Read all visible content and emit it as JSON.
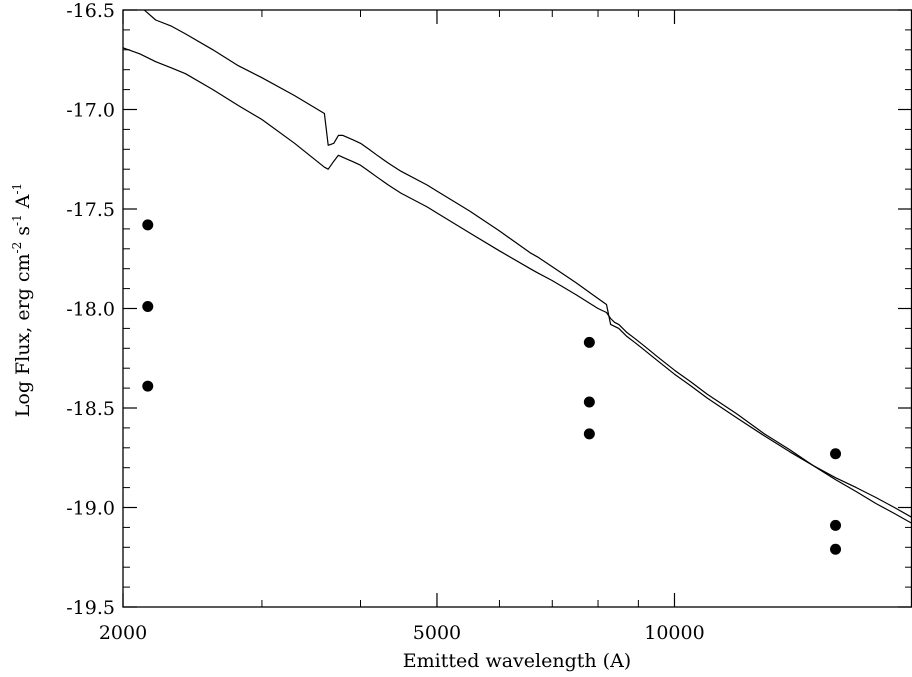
{
  "chart_data": {
    "type": "line",
    "title": "",
    "xlabel": "Emitted wavelength (A)",
    "ylabel": {
      "parts": [
        {
          "text": "Log Flux, erg cm",
          "sup": false
        },
        {
          "text": "-2",
          "sup": true
        },
        {
          "text": " s",
          "sup": false
        },
        {
          "text": "-1",
          "sup": true
        },
        {
          "text": " A",
          "sup": false
        },
        {
          "text": "-1",
          "sup": true
        }
      ]
    },
    "x_scale": "log",
    "xlim": [
      2000,
      20000
    ],
    "ylim": [
      -19.5,
      -16.5
    ],
    "x_ticks": [
      2000,
      5000,
      10000
    ],
    "x_tick_labels": [
      "2000",
      "5000",
      "10000"
    ],
    "y_ticks": [
      -16.5,
      -17.0,
      -17.5,
      -18.0,
      -18.5,
      -19.0,
      -19.5
    ],
    "y_tick_labels": [
      "-16.5",
      "-17.0",
      "-17.5",
      "-18.0",
      "-18.5",
      "-19.0",
      "-19.5"
    ],
    "grid": false,
    "colors": {
      "line": "#000000",
      "points": "#000000",
      "background": "#ffffff"
    },
    "series": [
      {
        "type": "line",
        "x": [
          2000,
          2100,
          2200,
          2300,
          2400,
          2600,
          2800,
          3000,
          3300,
          3600,
          3640,
          3700,
          3750,
          3800,
          3850,
          3900,
          3950,
          4000,
          4100,
          4200,
          4340,
          4500,
          4861,
          5000,
          5500,
          6000,
          6563,
          6700,
          7000,
          7500,
          8000,
          8200,
          8300,
          8400,
          8500,
          8700,
          8900,
          9100,
          9300,
          9500,
          10000,
          10500,
          11000,
          12000,
          13000,
          14000,
          15000,
          16000,
          17000,
          18000,
          19000,
          20000
        ],
        "y": [
          -16.43,
          -16.48,
          -16.55,
          -16.58,
          -16.62,
          -16.7,
          -16.78,
          -16.84,
          -16.93,
          -17.02,
          -17.18,
          -17.17,
          -17.13,
          -17.13,
          -17.14,
          -17.15,
          -17.16,
          -17.17,
          -17.2,
          -17.23,
          -17.27,
          -17.31,
          -17.38,
          -17.41,
          -17.51,
          -17.61,
          -17.72,
          -17.74,
          -17.79,
          -17.87,
          -17.95,
          -17.98,
          -18.08,
          -18.09,
          -18.1,
          -18.14,
          -18.17,
          -18.2,
          -18.23,
          -18.26,
          -18.33,
          -18.39,
          -18.45,
          -18.55,
          -18.64,
          -18.72,
          -18.79,
          -18.85,
          -18.9,
          -18.95,
          -19.0,
          -19.05
        ]
      },
      {
        "type": "line",
        "x": [
          2000,
          2100,
          2200,
          2300,
          2400,
          2600,
          2800,
          3000,
          3300,
          3600,
          3640,
          3700,
          3750,
          3800,
          3850,
          3900,
          3950,
          4000,
          4100,
          4200,
          4340,
          4500,
          4861,
          5000,
          5500,
          6000,
          6563,
          6700,
          7000,
          7500,
          8000,
          8200,
          8300,
          8400,
          8500,
          8700,
          8900,
          9100,
          9300,
          9500,
          10000,
          10500,
          11000,
          12000,
          13000,
          14000,
          15000,
          16000,
          17000,
          18000,
          19000,
          20000
        ],
        "y": [
          -16.69,
          -16.72,
          -16.76,
          -16.79,
          -16.82,
          -16.9,
          -16.98,
          -17.05,
          -17.17,
          -17.29,
          -17.3,
          -17.26,
          -17.23,
          -17.24,
          -17.25,
          -17.26,
          -17.27,
          -17.28,
          -17.31,
          -17.34,
          -17.38,
          -17.42,
          -17.49,
          -17.52,
          -17.62,
          -17.71,
          -17.8,
          -17.82,
          -17.86,
          -17.93,
          -18.0,
          -18.02,
          -18.05,
          -18.07,
          -18.08,
          -18.12,
          -18.15,
          -18.18,
          -18.21,
          -18.24,
          -18.31,
          -18.37,
          -18.43,
          -18.53,
          -18.63,
          -18.71,
          -18.79,
          -18.86,
          -18.92,
          -18.98,
          -19.03,
          -19.08
        ]
      },
      {
        "type": "scatter",
        "x": [
          2150,
          2150,
          2150,
          7800,
          7800,
          7800,
          16000,
          16000,
          16000
        ],
        "y": [
          -17.58,
          -17.99,
          -18.39,
          -18.17,
          -18.47,
          -18.63,
          -18.73,
          -19.09,
          -19.21
        ]
      }
    ]
  }
}
